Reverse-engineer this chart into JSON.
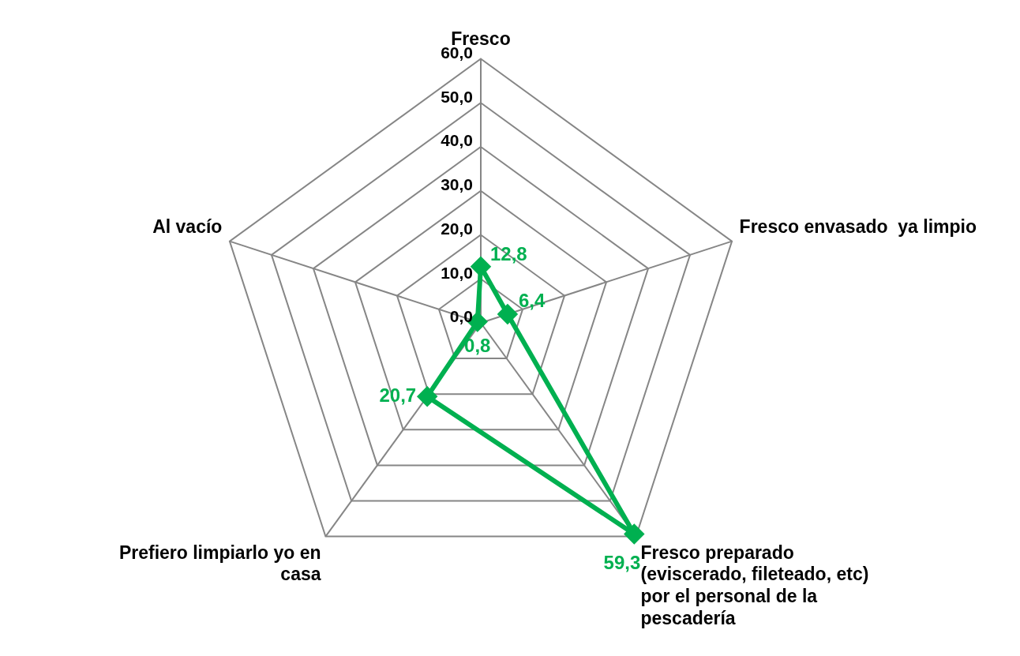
{
  "chart_data": {
    "type": "radar",
    "categories": [
      "Fresco",
      "Fresco envasado  ya limpio",
      "Fresco preparado (eviscerado, fileteado, etc) por el personal de la pescadería",
      "Prefiero limpiarlo yo en casa",
      "Al vacío"
    ],
    "series": [
      {
        "color": "#00b050",
        "values": [
          12.8,
          6.4,
          59.3,
          20.7,
          0.8
        ],
        "value_labels": [
          "12,8",
          "6,4",
          "59,3",
          "20,7",
          "0,8"
        ]
      }
    ],
    "ylim": [
      0,
      60
    ],
    "yticks": [
      {
        "value": 0,
        "label": "0,0"
      },
      {
        "value": 10,
        "label": "10,0"
      },
      {
        "value": 20,
        "label": "20,0"
      },
      {
        "value": 30,
        "label": "30,0"
      },
      {
        "value": 40,
        "label": "40,0"
      },
      {
        "value": 50,
        "label": "50,0"
      },
      {
        "value": 60,
        "label": "60,0"
      }
    ],
    "grid": true,
    "legend": false,
    "marker": "diamond",
    "line_style": "solid"
  }
}
